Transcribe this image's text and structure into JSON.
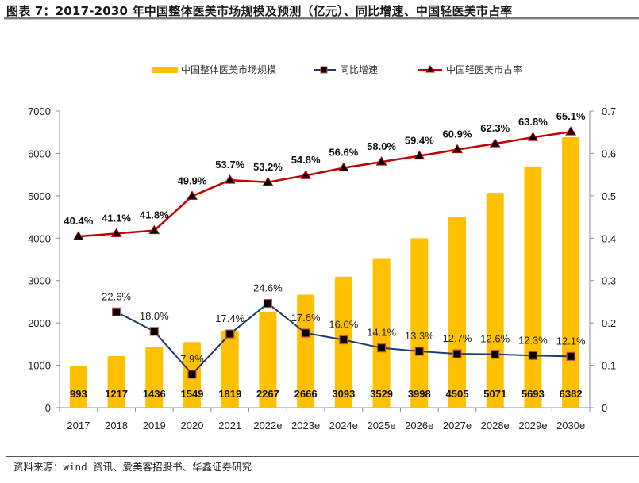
{
  "title": "图表 7：2017-2030 年中国整体医美市场规模及预测（亿元）、同比增速、中国轻医美市占率",
  "source": "资料来源：wind 资讯、爱美客招股书、华鑫证券研究",
  "chart_data": {
    "type": "bar",
    "title": "2017-2030 年中国整体医美市场规模及预测（亿元）、同比增速、中国轻医美市占率",
    "categories": [
      "2017",
      "2018",
      "2019",
      "2020",
      "2021",
      "2022e",
      "2023e",
      "2024e",
      "2025e",
      "2026e",
      "2027e",
      "2028e",
      "2029e",
      "2030e"
    ],
    "series": [
      {
        "name": "中国整体医美市场规模",
        "type": "bar",
        "axis": "left",
        "color": "#FFC000",
        "values": [
          993,
          1217,
          1436,
          1549,
          1819,
          2267,
          2666,
          3093,
          3529,
          3998,
          4505,
          5071,
          5693,
          6382
        ],
        "labels": [
          "993",
          "1217",
          "1436",
          "1549",
          "1819",
          "2267",
          "2666",
          "3093",
          "3529",
          "3998",
          "4505",
          "5071",
          "5693",
          "6382"
        ]
      },
      {
        "name": "同比增速",
        "type": "line",
        "axis": "right",
        "color": "#1F3A6E",
        "marker": "square",
        "marker_color": "#000000",
        "marker_edge": "#C0504D",
        "values": [
          null,
          0.226,
          0.18,
          0.079,
          0.174,
          0.246,
          0.176,
          0.16,
          0.141,
          0.133,
          0.127,
          0.126,
          0.123,
          0.121
        ],
        "labels": [
          "",
          "22.6%",
          "18.0%",
          "7.9%",
          "17.4%",
          "24.6%",
          "17.6%",
          "16.0%",
          "14.1%",
          "13.3%",
          "12.7%",
          "12.6%",
          "12.3%",
          "12.1%"
        ]
      },
      {
        "name": "中国轻医美市占率",
        "type": "line",
        "axis": "right",
        "color": "#C00000",
        "marker": "triangle",
        "marker_color": "#000000",
        "values": [
          0.404,
          0.411,
          0.418,
          0.499,
          0.537,
          0.532,
          0.548,
          0.566,
          0.58,
          0.594,
          0.609,
          0.623,
          0.638,
          0.651
        ],
        "labels": [
          "40.4%",
          "41.1%",
          "41.8%",
          "49.9%",
          "53.7%",
          "53.2%",
          "54.8%",
          "56.6%",
          "58.0%",
          "59.4%",
          "60.9%",
          "62.3%",
          "63.8%",
          "65.1%"
        ]
      }
    ],
    "left_axis": {
      "ylim": [
        0,
        7000
      ],
      "ticks": [
        "0",
        "1000",
        "2000",
        "3000",
        "4000",
        "5000",
        "6000",
        "7000"
      ]
    },
    "right_axis": {
      "ylim": [
        0,
        0.7
      ],
      "ticks": [
        "0",
        "0.1",
        "0.2",
        "0.3",
        "0.4",
        "0.5",
        "0.6",
        "0.7"
      ]
    },
    "xlabel": "",
    "ylabel": "",
    "grid": false,
    "legend": "top-center"
  }
}
